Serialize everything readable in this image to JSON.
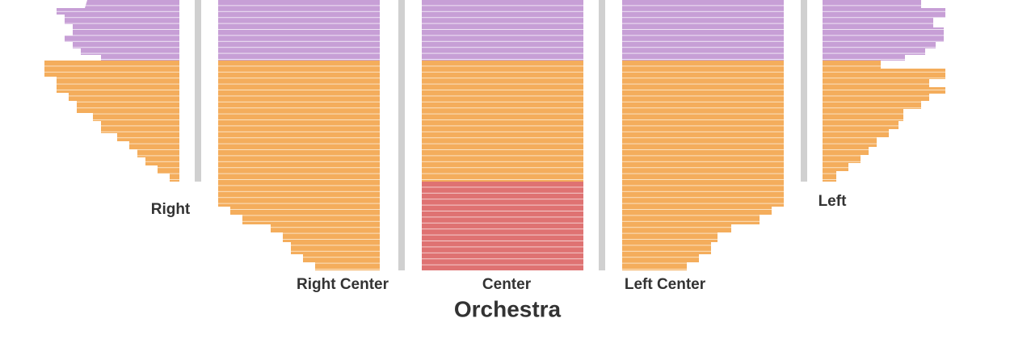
{
  "title": "Orchestra",
  "sections": [
    {
      "label": "Right"
    },
    {
      "label": "Right Center"
    },
    {
      "label": "Center"
    },
    {
      "label": "Left Center"
    },
    {
      "label": "Left"
    }
  ]
}
